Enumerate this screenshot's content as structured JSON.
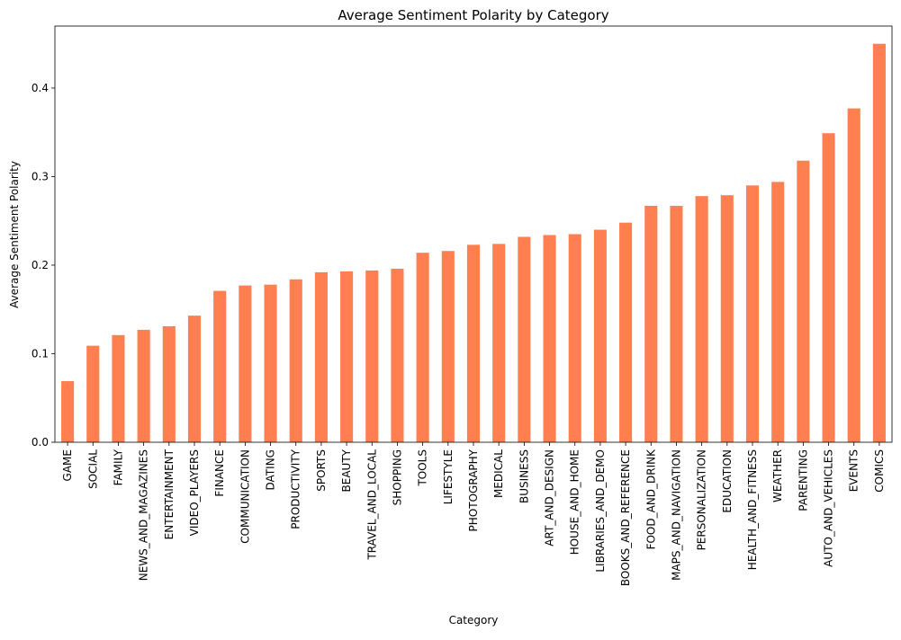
{
  "chart_data": {
    "type": "bar",
    "title": "Average Sentiment Polarity by Category",
    "xlabel": "Category",
    "ylabel": "Average Sentiment Polarity",
    "ylim": [
      0,
      0.47
    ],
    "yticks": [
      "0.0",
      "0.1",
      "0.2",
      "0.3",
      "0.4"
    ],
    "grid": false,
    "bar_color": "#FF7F50",
    "categories": [
      "GAME",
      "SOCIAL",
      "FAMILY",
      "NEWS_AND_MAGAZINES",
      "ENTERTAINMENT",
      "VIDEO_PLAYERS",
      "FINANCE",
      "COMMUNICATION",
      "DATING",
      "PRODUCTIVITY",
      "SPORTS",
      "BEAUTY",
      "TRAVEL_AND_LOCAL",
      "SHOPPING",
      "TOOLS",
      "LIFESTYLE",
      "PHOTOGRAPHY",
      "MEDICAL",
      "BUSINESS",
      "ART_AND_DESIGN",
      "HOUSE_AND_HOME",
      "LIBRARIES_AND_DEMO",
      "BOOKS_AND_REFERENCE",
      "FOOD_AND_DRINK",
      "MAPS_AND_NAVIGATION",
      "PERSONALIZATION",
      "EDUCATION",
      "HEALTH_AND_FITNESS",
      "WEATHER",
      "PARENTING",
      "AUTO_AND_VEHICLES",
      "EVENTS",
      "COMICS"
    ],
    "values": [
      0.069,
      0.109,
      0.121,
      0.127,
      0.131,
      0.143,
      0.171,
      0.177,
      0.178,
      0.184,
      0.192,
      0.193,
      0.194,
      0.196,
      0.214,
      0.216,
      0.223,
      0.224,
      0.232,
      0.234,
      0.235,
      0.24,
      0.248,
      0.267,
      0.267,
      0.278,
      0.279,
      0.29,
      0.294,
      0.318,
      0.349,
      0.377,
      0.45
    ]
  }
}
